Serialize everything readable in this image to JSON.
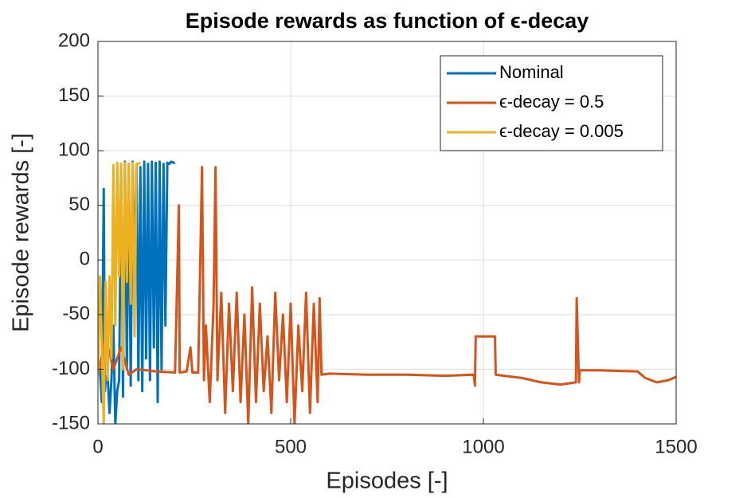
{
  "chart_data": {
    "type": "line",
    "title": "Episode rewards as function of ϵ-decay",
    "xlabel": "Episodes [-]",
    "ylabel": "Episode rewards [-]",
    "xlim": [
      0,
      1500
    ],
    "xticks": [
      0,
      500,
      1000,
      1500
    ],
    "ylim": [
      -150,
      200
    ],
    "yticks": [
      -150,
      -100,
      -50,
      0,
      50,
      100,
      150,
      200
    ],
    "grid": true,
    "legend": "upper right",
    "series": [
      {
        "name": "Nominal",
        "color": "#0072BD",
        "x": [
          0,
          5,
          10,
          15,
          18,
          20,
          25,
          30,
          35,
          40,
          45,
          50,
          55,
          60,
          65,
          70,
          75,
          80,
          85,
          90,
          95,
          100,
          105,
          110,
          115,
          120,
          125,
          130,
          135,
          140,
          145,
          150,
          155,
          160,
          165,
          170,
          175,
          180,
          185,
          190,
          195,
          200
        ],
        "values": [
          -105,
          -100,
          -130,
          65,
          -120,
          -110,
          -105,
          -140,
          -110,
          -60,
          -150,
          -120,
          -110,
          85,
          -125,
          90,
          -100,
          88,
          -115,
          90,
          -20,
          88,
          -110,
          85,
          -120,
          90,
          -90,
          88,
          -110,
          90,
          -80,
          89,
          -130,
          90,
          -100,
          88,
          -60,
          89,
          88,
          90,
          89,
          89
        ]
      },
      {
        "name": "ϵ-decay = 0.5",
        "color": "#D95319",
        "x": [
          0,
          20,
          40,
          60,
          80,
          100,
          150,
          200,
          210,
          212,
          230,
          240,
          245,
          260,
          270,
          275,
          280,
          290,
          300,
          305,
          310,
          320,
          330,
          340,
          350,
          360,
          370,
          380,
          390,
          400,
          410,
          420,
          430,
          440,
          450,
          460,
          470,
          480,
          490,
          500,
          510,
          520,
          530,
          540,
          550,
          560,
          570,
          575,
          580,
          600,
          700,
          800,
          900,
          975,
          978,
          980,
          1030,
          1032,
          1100,
          1150,
          1200,
          1240,
          1242,
          1248,
          1250,
          1300,
          1400,
          1420,
          1450,
          1480,
          1500
        ],
        "values": [
          -105,
          -70,
          -100,
          -80,
          -105,
          -100,
          -102,
          -103,
          50,
          -103,
          -102,
          -80,
          -103,
          -103,
          85,
          -110,
          -60,
          -130,
          -40,
          85,
          -110,
          -30,
          -140,
          -40,
          -120,
          -30,
          -130,
          -50,
          -150,
          -25,
          -130,
          -40,
          -120,
          -70,
          -140,
          -30,
          -110,
          -50,
          -130,
          -40,
          -150,
          -60,
          -120,
          -30,
          -140,
          -40,
          -130,
          -35,
          -105,
          -104,
          -105,
          -105,
          -106,
          -105,
          -115,
          -70,
          -70,
          -105,
          -108,
          -112,
          -114,
          -112,
          -35,
          -112,
          -101,
          -101,
          -102,
          -108,
          -112,
          -110,
          -107
        ]
      },
      {
        "name": "ϵ-decay = 0.005",
        "color": "#EDB120",
        "x": [
          0,
          5,
          10,
          15,
          20,
          25,
          30,
          35,
          40,
          45,
          50,
          55,
          60,
          65,
          70,
          75,
          80,
          85,
          90,
          95,
          100,
          105,
          110
        ],
        "values": [
          -105,
          -15,
          -80,
          -150,
          -20,
          -110,
          -15,
          -90,
          87,
          -60,
          89,
          -15,
          88,
          -100,
          89,
          -20,
          88,
          -40,
          89,
          -70,
          88,
          88,
          89
        ]
      }
    ]
  }
}
